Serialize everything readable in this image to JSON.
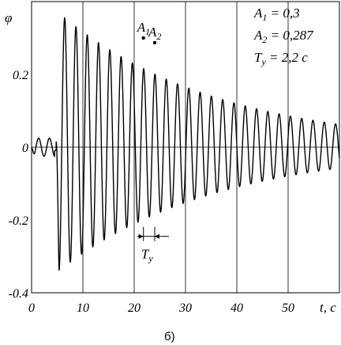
{
  "chart_data": {
    "type": "line",
    "title": "",
    "caption": "б)",
    "xlabel": "t, с",
    "ylabel": "φ",
    "xlim": [
      0,
      60
    ],
    "ylim": [
      -0.4,
      0.4
    ],
    "x_ticks": [
      0,
      10,
      20,
      30,
      40,
      50
    ],
    "x_tick_labels": [
      "0",
      "10",
      "20",
      "30",
      "40",
      "50"
    ],
    "y_ticks": [
      0.2,
      0,
      -0.2,
      -0.4
    ],
    "y_tick_labels": [
      "0.2",
      "0",
      "-0.2",
      "-0.4"
    ],
    "grid": {
      "vertical": true,
      "horizontal_zero_line": true
    },
    "series": [
      {
        "signal_model": "damped oscillation",
        "pre_oscillation": {
          "x_start": 0,
          "x_end": 4.5,
          "amplitude": 0.025
        },
        "start_time": 4.8,
        "period": 2.2,
        "peak_amplitude": 0.36,
        "final_amplitude": 0.06,
        "x_end": 60
      }
    ],
    "annotations": {
      "legend_text": [
        "A1 = 0,3",
        "A2 = 0,287",
        "Ty = 2,2 с"
      ],
      "point_labels": [
        {
          "label": "A1",
          "x": 21.8,
          "y": 0.3
        },
        {
          "label": "A2",
          "x": 24.0,
          "y": 0.287
        }
      ],
      "period_marker": {
        "label": "Ty",
        "x_start": 21.8,
        "x_end": 24.0,
        "y": -0.245
      }
    }
  }
}
